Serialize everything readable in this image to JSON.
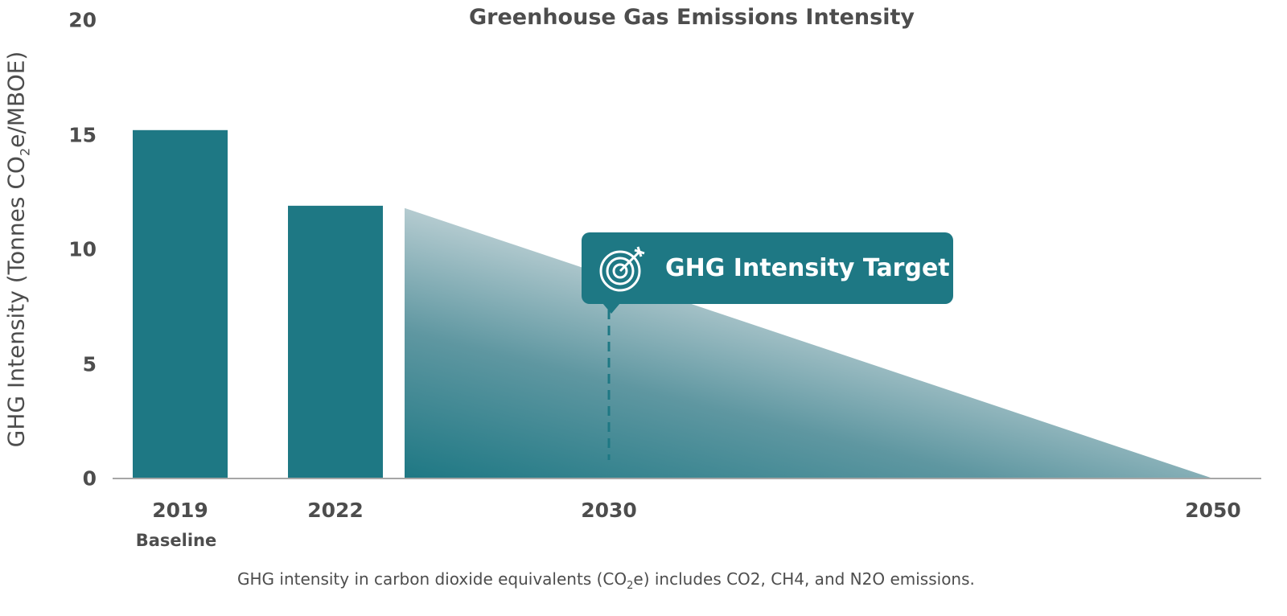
{
  "chart_data": {
    "type": "bar",
    "title": "Greenhouse Gas Emissions Intensity",
    "ylabel_parts": {
      "pre": "GHG Intensity (Tonnes CO",
      "sub": "2",
      "post": "e/MBOE)"
    },
    "ylim": [
      0,
      20
    ],
    "yticks": [
      "0",
      "5",
      "10",
      "15",
      "20"
    ],
    "categories": [
      "2019",
      "2022"
    ],
    "category_sublabels": [
      "Baseline",
      ""
    ],
    "values": [
      15.2,
      11.9
    ],
    "projection": {
      "x": [
        "2022",
        "2050"
      ],
      "y": [
        11.8,
        0
      ],
      "style": "gradient-fill"
    },
    "xticks": [
      "2019",
      "2022",
      "2030",
      "2050"
    ],
    "annotation": {
      "label": "GHG Intensity Target",
      "x": "2030",
      "icon": "target-icon"
    },
    "footnote_parts": {
      "pre": "GHG intensity in carbon dioxide equivalents (CO",
      "sub": "2",
      "post": "e) includes CO2, CH4, and N2O emissions."
    },
    "colors": {
      "bar": "#1e7884",
      "axis": "#a6a6a6",
      "text": "#4d4d4d"
    },
    "grid": false
  }
}
